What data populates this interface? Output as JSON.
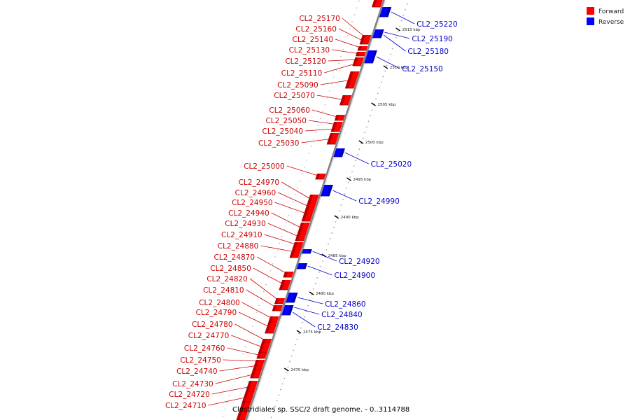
{
  "caption": "Clostridiales sp. SSC/2 draft genome. - 0..3114788",
  "legend": [
    {
      "label": "Forward",
      "color": "#ff0000"
    },
    {
      "label": "Reverse",
      "color": "#0000ff"
    }
  ],
  "colors": {
    "forward": "#ff0000",
    "reverse": "#0000ff",
    "forward_label": "#cc0000",
    "reverse_label": "#0000cc"
  },
  "ticks": [
    "2515 kbp",
    "2510 kbp",
    "2505 kbp",
    "2500 kbp",
    "2495 kbp",
    "2490 kbp",
    "2485 kbp",
    "2480 kbp",
    "2475 kbp",
    "2470 kbp"
  ],
  "forward_genes": [
    "CL2_25170",
    "CL2_25160",
    "CL2_25140",
    "CL2_25130",
    "CL2_25120",
    "CL2_25110",
    "CL2_25090",
    "CL2_25070",
    "CL2_25060",
    "CL2_25050",
    "CL2_25040",
    "CL2_25030",
    "CL2_25000",
    "CL2_24970",
    "CL2_24960",
    "CL2_24950",
    "CL2_24940",
    "CL2_24930",
    "CL2_24910",
    "CL2_24880",
    "CL2_24870",
    "CL2_24850",
    "CL2_24820",
    "CL2_24810",
    "CL2_24800",
    "CL2_24790",
    "CL2_24780",
    "CL2_24770",
    "CL2_24760",
    "CL2_24750",
    "CL2_24740",
    "CL2_24730",
    "CL2_24720",
    "CL2_24710"
  ],
  "reverse_genes": [
    "CL2_25220",
    "CL2_25190",
    "CL2_25180",
    "CL2_25150",
    "CL2_25020",
    "CL2_24990",
    "CL2_24920",
    "CL2_24900",
    "CL2_24860",
    "CL2_24840",
    "CL2_24830"
  ]
}
